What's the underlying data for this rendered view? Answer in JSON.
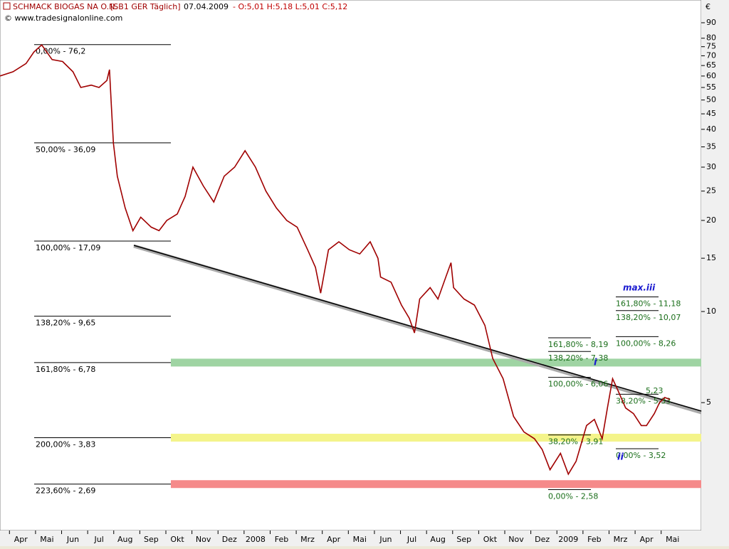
{
  "chart_data": {
    "type": "line",
    "title": "SCHMACK BIOGAS NA O.N.",
    "symbol": "[SB1 GER  Täglich]",
    "date": "07.04.2009",
    "ohlc": "- O:5,01 H:5,18 L:5,01 C:5,12",
    "source": "© www.tradesignalonline.com",
    "currency": "€",
    "log_scale": true,
    "color": "#a00000",
    "xlim": [
      -0.8,
      26.1
    ],
    "xticks": [
      {
        "value": 0,
        "label": "Apr"
      },
      {
        "value": 1,
        "label": "Mai"
      },
      {
        "value": 2,
        "label": "Jun"
      },
      {
        "value": 3,
        "label": "Jul"
      },
      {
        "value": 4,
        "label": "Aug"
      },
      {
        "value": 5,
        "label": "Sep"
      },
      {
        "value": 6,
        "label": "Okt"
      },
      {
        "value": 7,
        "label": "Nov"
      },
      {
        "value": 8,
        "label": "Dez"
      },
      {
        "value": 9,
        "label": "2008"
      },
      {
        "value": 10,
        "label": "Feb"
      },
      {
        "value": 11,
        "label": "Mrz"
      },
      {
        "value": 12,
        "label": "Apr"
      },
      {
        "value": 13,
        "label": "Mai"
      },
      {
        "value": 14,
        "label": "Jun"
      },
      {
        "value": 15,
        "label": "Jul"
      },
      {
        "value": 16,
        "label": "Aug"
      },
      {
        "value": 17,
        "label": "Sep"
      },
      {
        "value": 18,
        "label": "Okt"
      },
      {
        "value": 19,
        "label": "Nov"
      },
      {
        "value": 20,
        "label": "Dez"
      },
      {
        "value": 21,
        "label": "2009"
      },
      {
        "value": 22,
        "label": "Feb"
      },
      {
        "value": 23,
        "label": "Mrz"
      },
      {
        "value": 24,
        "label": "Apr"
      },
      {
        "value": 25,
        "label": "Mai"
      }
    ],
    "ylim": [
      1.9,
      107
    ],
    "yticks": [
      90,
      80,
      75,
      70,
      65,
      60,
      55,
      50,
      45,
      40,
      35,
      30,
      25,
      20,
      15,
      10,
      5
    ],
    "x": [
      -0.8,
      -0.3,
      0.2,
      0.5,
      0.8,
      1.2,
      1.6,
      2.0,
      2.3,
      2.7,
      3.0,
      3.3,
      3.4,
      3.47,
      3.55,
      3.7,
      4.0,
      4.3,
      4.6,
      5.0,
      5.3,
      5.6,
      6.0,
      6.3,
      6.6,
      7.0,
      7.4,
      7.8,
      8.2,
      8.6,
      9.0,
      9.4,
      9.8,
      10.2,
      10.6,
      11.0,
      11.3,
      11.5,
      11.8,
      12.2,
      12.6,
      13.0,
      13.4,
      13.7,
      13.8,
      14.2,
      14.6,
      14.9,
      15.1,
      15.3,
      15.7,
      16.0,
      16.3,
      16.5,
      16.6,
      17.0,
      17.4,
      17.8,
      18.1,
      18.5,
      18.9,
      19.3,
      19.7,
      20.0,
      20.3,
      20.7,
      21.0,
      21.3,
      21.7,
      22.0,
      22.3,
      22.5,
      22.7,
      22.9,
      23.2,
      23.5,
      23.8,
      24.0,
      24.3,
      24.5,
      24.7,
      24.9
    ],
    "series": [
      {
        "values": [
          60,
          62,
          66,
          72,
          76,
          68,
          67,
          62,
          55,
          56,
          55,
          58,
          63,
          48,
          36,
          28,
          22,
          18.5,
          20.5,
          19,
          18.5,
          20,
          21,
          24,
          30,
          26,
          23,
          28,
          30,
          34,
          30,
          25,
          22,
          20,
          19,
          16,
          14,
          11.5,
          16,
          17,
          16,
          15.5,
          17,
          15,
          13,
          12.5,
          10.5,
          9.5,
          8.5,
          11,
          12,
          11,
          13,
          14.5,
          12,
          11,
          10.5,
          9,
          7,
          6,
          4.5,
          4.0,
          3.8,
          3.5,
          3.0,
          3.4,
          2.9,
          3.2,
          4.2,
          4.4,
          3.8,
          4.8,
          6.0,
          5.5,
          4.8,
          4.6,
          4.2,
          4.2,
          4.6,
          5.0,
          5.2,
          5.12
        ]
      }
    ],
    "levels": [
      {
        "value": 76.2,
        "label": "0,00% - 76,2"
      },
      {
        "value": 36.09,
        "label": "50,00% - 36,09"
      },
      {
        "value": 17.09,
        "label": "100,00% - 17,09"
      },
      {
        "value": 9.65,
        "label": "138,20% - 9,65"
      },
      {
        "value": 6.78,
        "label": "161,80% - 6,78"
      },
      {
        "value": 3.83,
        "label": "200,00% - 3,83"
      },
      {
        "value": 2.69,
        "label": "223,60% - 2,69"
      }
    ],
    "bands": [
      {
        "value": 6.78,
        "color": "#9fd4a3"
      },
      {
        "value": 3.83,
        "color": "#f4f48a"
      },
      {
        "value": 2.69,
        "color": "#f58a8a"
      }
    ],
    "fib_groups": [
      {
        "levels": [
          {
            "value": 8.19,
            "label": "161,80% - 8,19"
          },
          {
            "value": 7.38,
            "label": "138,20% - 7,38"
          },
          {
            "value": 6.06,
            "label": "100,00% - 6,06"
          },
          {
            "value": 3.91,
            "label": "38,20% - 3,91"
          },
          {
            "value": 2.58,
            "label": "0,00% - 2,58"
          }
        ]
      },
      {
        "levels": [
          {
            "value": 11.18,
            "label": "161,80% - 11,18"
          },
          {
            "value": 10.07,
            "label": "138,20% - 10,07"
          },
          {
            "value": 8.26,
            "label": "100,00% - 8,26"
          },
          {
            "value": 5.33,
            "label": "38,20% - 5,33"
          },
          {
            "value": 3.52,
            "label": "0,00% - 3,52"
          }
        ]
      }
    ],
    "annotations": [
      "max.iii",
      "i",
      "ii",
      "5,23"
    ]
  }
}
